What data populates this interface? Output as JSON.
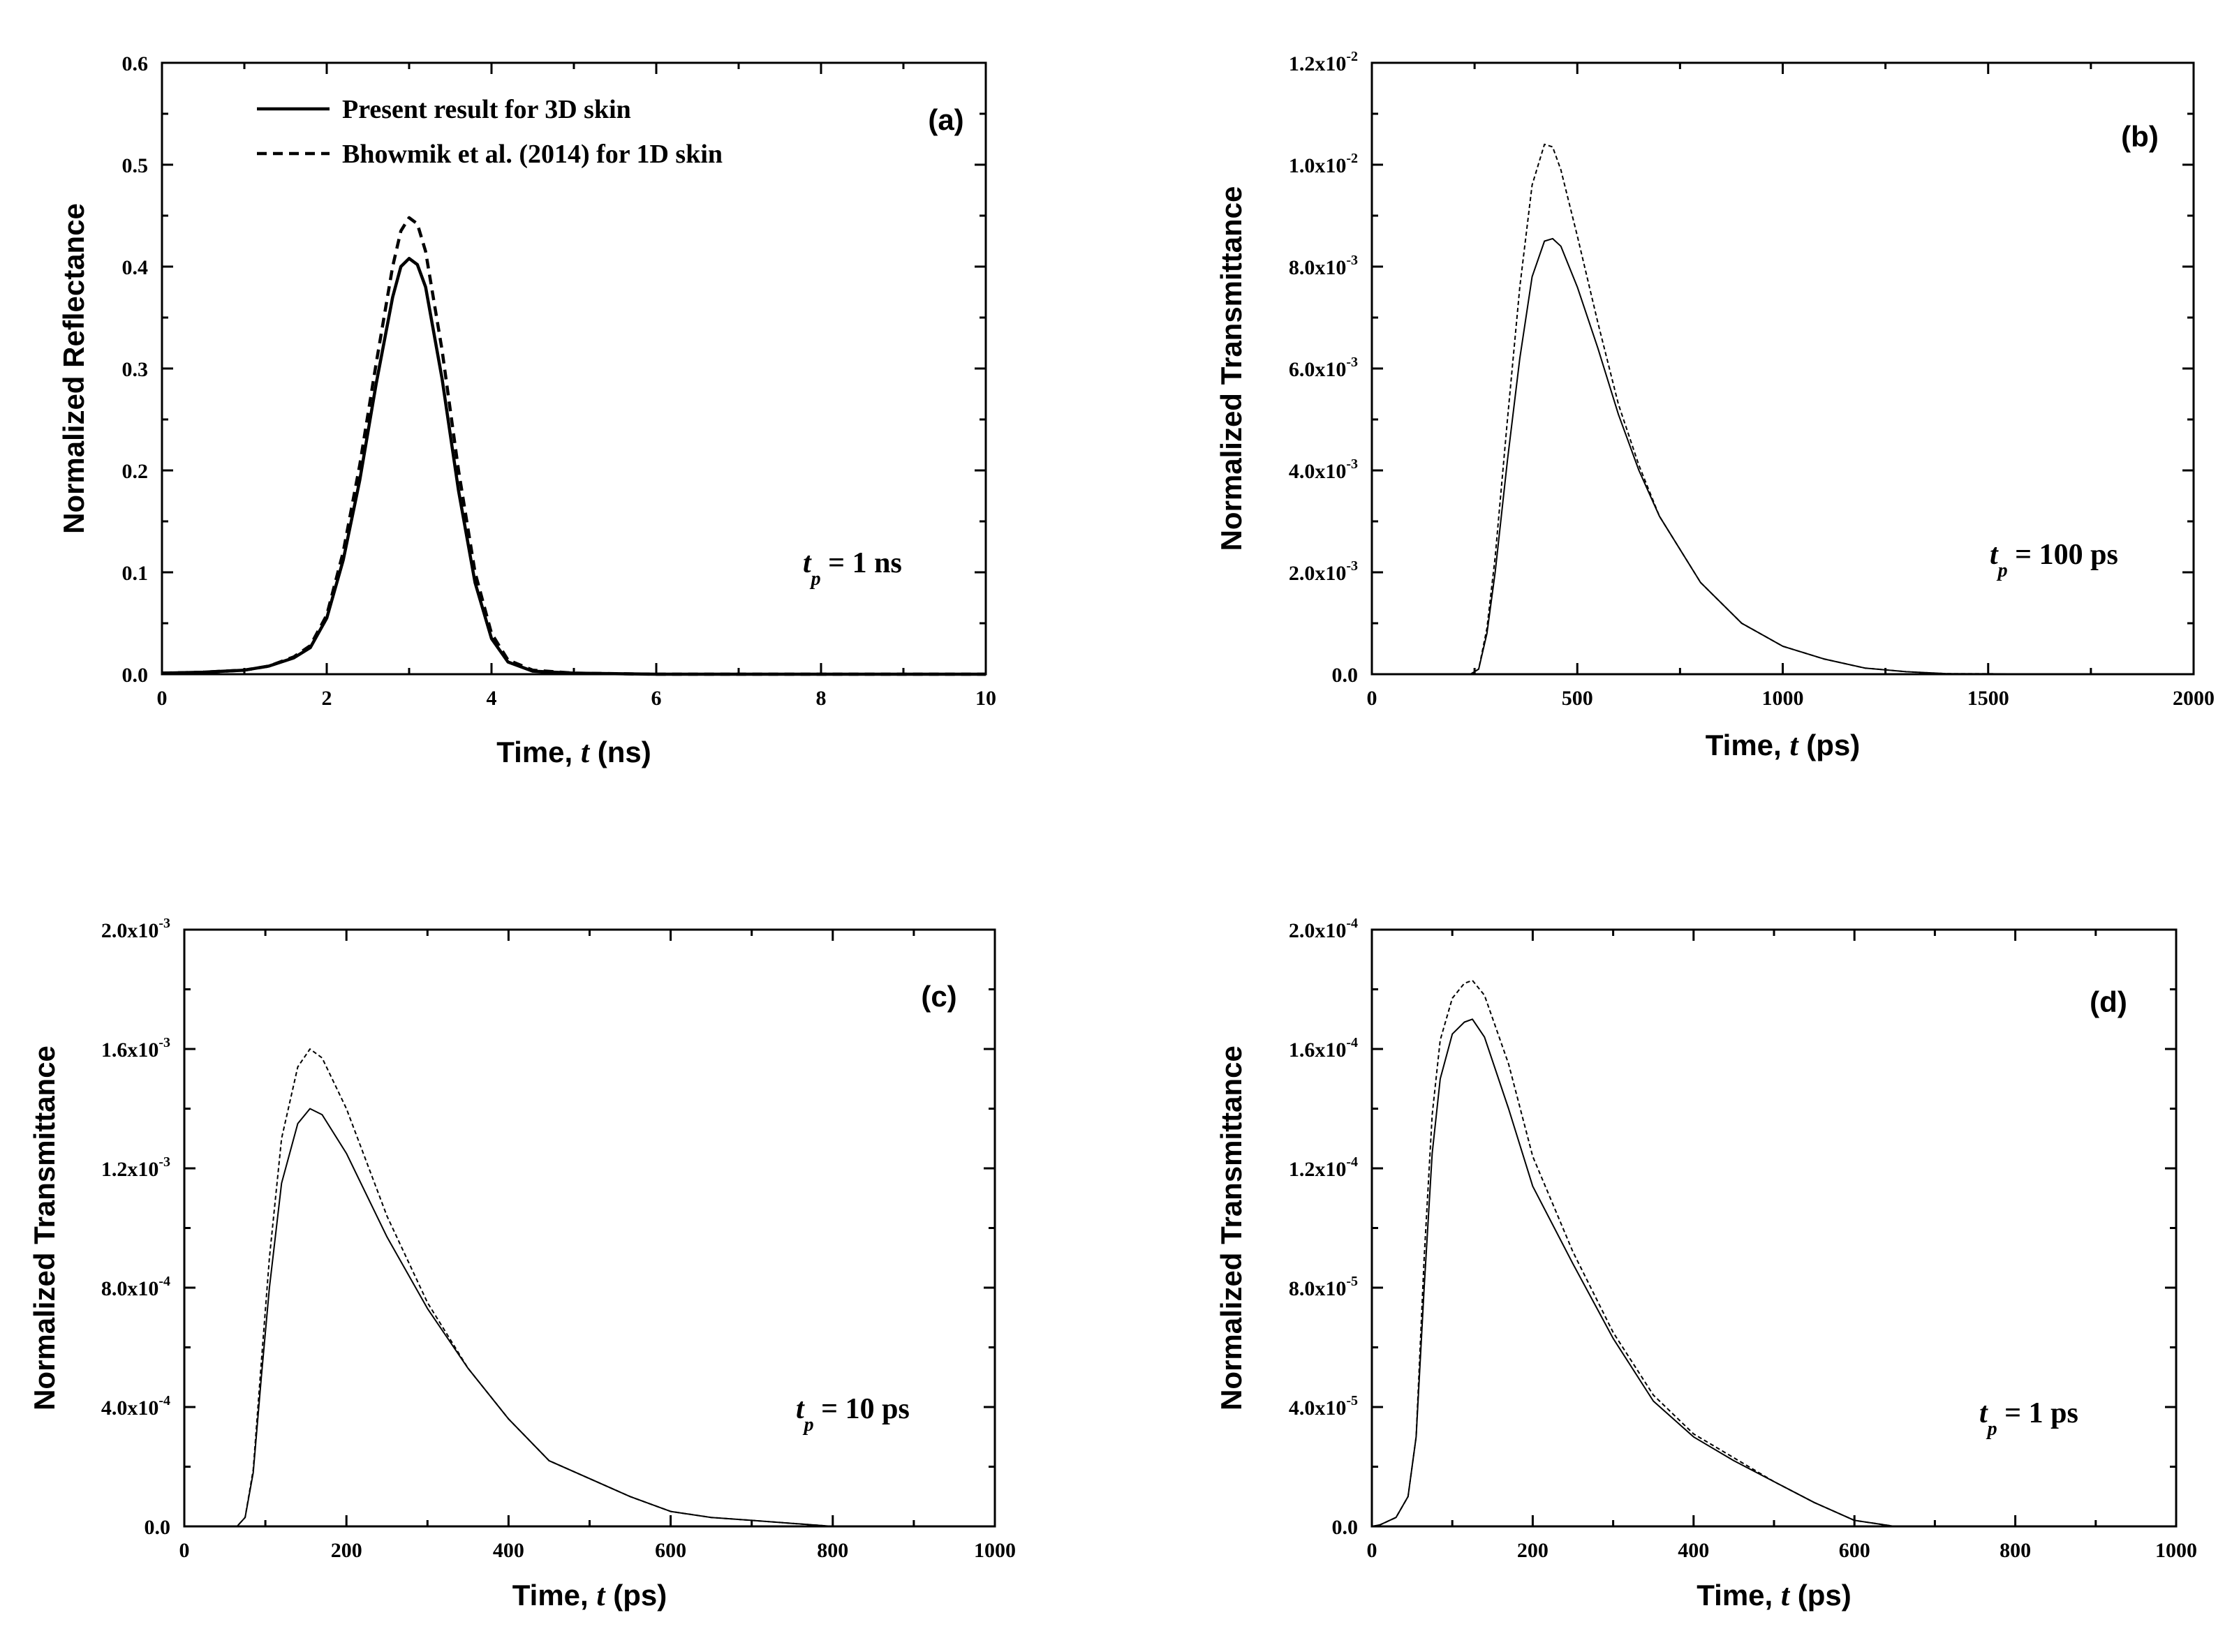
{
  "chart_data": [
    {
      "id": "a",
      "type": "line",
      "panel_label": "(a)",
      "xlabel": "Time, ",
      "xlabel_var": "t",
      "xlabel_unit": " (ns)",
      "ylabel": "Normalized Reflectance",
      "xlim": [
        0,
        10
      ],
      "ylim": [
        0,
        0.6
      ],
      "xticks": [
        0,
        2,
        4,
        6,
        8,
        10
      ],
      "yticks": [
        0.0,
        0.1,
        0.2,
        0.3,
        0.4,
        0.5,
        0.6
      ],
      "xtick_labels": [
        "0",
        "2",
        "4",
        "6",
        "8",
        "10"
      ],
      "ytick_labels": [
        "0.0",
        "0.1",
        "0.2",
        "0.3",
        "0.4",
        "0.5",
        "0.6"
      ],
      "annotation": {
        "var": "t",
        "sub": "p",
        "text": " = 1 ns"
      },
      "legend": [
        {
          "label": "Present result for 3D skin",
          "style": "solid"
        },
        {
          "label": "Bhowmik et al. (2014)  for 1D skin",
          "style": "dashed"
        }
      ],
      "series": [
        {
          "name": "Present result for 3D skin",
          "style": "solid",
          "x": [
            0,
            0.5,
            1.0,
            1.3,
            1.6,
            1.8,
            2.0,
            2.2,
            2.4,
            2.6,
            2.8,
            2.9,
            3.0,
            3.1,
            3.2,
            3.4,
            3.6,
            3.8,
            4.0,
            4.2,
            4.5,
            5.0,
            6.0,
            10
          ],
          "y": [
            0.001,
            0.002,
            0.004,
            0.008,
            0.016,
            0.026,
            0.055,
            0.112,
            0.19,
            0.285,
            0.37,
            0.4,
            0.408,
            0.402,
            0.38,
            0.29,
            0.18,
            0.09,
            0.035,
            0.012,
            0.003,
            0.001,
            0.0,
            0.0
          ]
        },
        {
          "name": "Bhowmik et al. (2014)  for 1D skin",
          "style": "dashed",
          "x": [
            0,
            0.5,
            1.0,
            1.3,
            1.6,
            1.8,
            2.0,
            2.2,
            2.4,
            2.6,
            2.8,
            2.9,
            3.0,
            3.1,
            3.2,
            3.4,
            3.6,
            3.8,
            4.0,
            4.2,
            4.5,
            5.0,
            6.0,
            10
          ],
          "y": [
            0.001,
            0.002,
            0.004,
            0.008,
            0.017,
            0.028,
            0.058,
            0.12,
            0.205,
            0.305,
            0.4,
            0.435,
            0.448,
            0.442,
            0.415,
            0.318,
            0.2,
            0.1,
            0.04,
            0.014,
            0.004,
            0.001,
            0.0,
            0.0
          ]
        }
      ]
    },
    {
      "id": "b",
      "type": "line",
      "panel_label": "(b)",
      "xlabel": "Time, ",
      "xlabel_var": "t",
      "xlabel_unit": " (ps)",
      "ylabel": "Normalized Transmittance",
      "xlim": [
        0,
        2000
      ],
      "ylim": [
        0,
        0.012
      ],
      "xticks": [
        0,
        500,
        1000,
        1500,
        2000
      ],
      "yticks": [
        0,
        0.002,
        0.004,
        0.006,
        0.008,
        0.01,
        0.012
      ],
      "xtick_labels": [
        "0",
        "500",
        "1000",
        "1500",
        "2000"
      ],
      "ytick_labels": [
        [
          "0.0",
          ""
        ],
        [
          "2.0x10",
          "-3"
        ],
        [
          "4.0x10",
          "-3"
        ],
        [
          "6.0x10",
          "-3"
        ],
        [
          "8.0x10",
          "-3"
        ],
        [
          "1.0x10",
          "-2"
        ],
        [
          "1.2x10",
          "-2"
        ]
      ],
      "annotation": {
        "var": "t",
        "sub": "p",
        "text": " = 100 ps"
      },
      "series": [
        {
          "name": "Present result for 3D skin",
          "style": "solid",
          "x": [
            0,
            240,
            260,
            280,
            300,
            330,
            360,
            390,
            420,
            440,
            460,
            500,
            550,
            600,
            650,
            700,
            800,
            900,
            1000,
            1100,
            1200,
            1300,
            1400,
            2000
          ],
          "y": [
            0,
            0,
            0.0001,
            0.0008,
            0.002,
            0.0042,
            0.0062,
            0.0078,
            0.0085,
            0.00855,
            0.0084,
            0.0076,
            0.0064,
            0.0051,
            0.004,
            0.0031,
            0.0018,
            0.001,
            0.00055,
            0.0003,
            0.00012,
            5e-05,
            1e-05,
            0
          ]
        },
        {
          "name": "Bhowmik et al. (2014)  for 1D skin",
          "style": "dashed",
          "x": [
            0,
            240,
            260,
            280,
            300,
            330,
            360,
            390,
            420,
            440,
            460,
            500,
            550,
            600,
            650,
            700,
            800,
            900,
            1000,
            1100,
            1200,
            1300,
            1400,
            2000
          ],
          "y": [
            0,
            0,
            0.0001,
            0.0009,
            0.0023,
            0.005,
            0.0076,
            0.0096,
            0.0104,
            0.01035,
            0.0099,
            0.0086,
            0.0069,
            0.0053,
            0.0041,
            0.0031,
            0.0018,
            0.001,
            0.00055,
            0.0003,
            0.00012,
            5e-05,
            1e-05,
            0
          ]
        }
      ]
    },
    {
      "id": "c",
      "type": "line",
      "panel_label": "(c)",
      "xlabel": "Time, ",
      "xlabel_var": "t",
      "xlabel_unit": " (ps)",
      "ylabel": "Normalized Transmittance",
      "xlim": [
        0,
        1000
      ],
      "ylim": [
        0,
        0.002
      ],
      "xticks": [
        0,
        200,
        400,
        600,
        800,
        1000
      ],
      "yticks": [
        0,
        0.0004,
        0.0008,
        0.0012,
        0.0016,
        0.002
      ],
      "xtick_labels": [
        "0",
        "200",
        "400",
        "600",
        "800",
        "1000"
      ],
      "ytick_labels": [
        [
          "0.0",
          ""
        ],
        [
          "4.0x10",
          "-4"
        ],
        [
          "8.0x10",
          "-4"
        ],
        [
          "1.2x10",
          "-3"
        ],
        [
          "1.6x10",
          "-3"
        ],
        [
          "2.0x10",
          "-3"
        ]
      ],
      "annotation": {
        "var": "t",
        "sub": "p",
        "text": " = 10 ps"
      },
      "series": [
        {
          "name": "Present result for 3D skin",
          "style": "solid",
          "x": [
            0,
            65,
            75,
            85,
            95,
            105,
            120,
            140,
            155,
            170,
            200,
            250,
            300,
            350,
            400,
            450,
            500,
            550,
            600,
            650,
            700,
            750,
            800,
            1000
          ],
          "y": [
            0,
            0,
            3e-05,
            0.00018,
            0.0005,
            0.0008,
            0.00115,
            0.00135,
            0.0014,
            0.00138,
            0.00125,
            0.00097,
            0.00073,
            0.00053,
            0.00036,
            0.00022,
            0.00016,
            0.0001,
            5e-05,
            3e-05,
            2e-05,
            1e-05,
            0,
            0
          ]
        },
        {
          "name": "Bhowmik et al. (2014)  for 1D skin",
          "style": "dashed",
          "x": [
            0,
            65,
            75,
            85,
            95,
            105,
            120,
            140,
            155,
            170,
            200,
            250,
            300,
            350,
            400,
            450,
            500,
            550,
            600,
            650,
            700,
            750,
            800,
            1000
          ],
          "y": [
            0,
            0,
            3e-05,
            0.00019,
            0.00055,
            0.0009,
            0.0013,
            0.00154,
            0.0016,
            0.00157,
            0.0014,
            0.00104,
            0.00075,
            0.00053,
            0.00036,
            0.00022,
            0.00016,
            0.0001,
            5e-05,
            3e-05,
            2e-05,
            1e-05,
            0,
            0
          ]
        }
      ]
    },
    {
      "id": "d",
      "type": "line",
      "panel_label": "(d)",
      "xlabel": "Time, ",
      "xlabel_var": "t",
      "xlabel_unit": " (ps)",
      "ylabel": "Normalized Transmittance",
      "xlim": [
        0,
        1000
      ],
      "ylim": [
        0,
        0.0002
      ],
      "xticks": [
        0,
        200,
        400,
        600,
        800,
        1000
      ],
      "yticks": [
        0,
        4e-05,
        8e-05,
        0.00012,
        0.00016,
        0.0002
      ],
      "xtick_labels": [
        "0",
        "200",
        "400",
        "600",
        "800",
        "1000"
      ],
      "ytick_labels": [
        [
          "0.0",
          ""
        ],
        [
          "4.0x10",
          "-5"
        ],
        [
          "8.0x10",
          "-5"
        ],
        [
          "1.2x10",
          "-4"
        ],
        [
          "1.6x10",
          "-4"
        ],
        [
          "2.0x10",
          "-4"
        ]
      ],
      "annotation": {
        "var": "t",
        "sub": "p",
        "text": " = 1 ps"
      },
      "series": [
        {
          "name": "Present result for 3D skin",
          "style": "solid",
          "x": [
            0,
            10,
            30,
            45,
            55,
            65,
            75,
            85,
            100,
            115,
            125,
            140,
            170,
            200,
            250,
            300,
            350,
            400,
            450,
            500,
            550,
            600,
            650,
            1000
          ],
          "y": [
            0,
            5e-07,
            3e-06,
            1e-05,
            3e-05,
            8e-05,
            0.000125,
            0.00015,
            0.000165,
            0.000169,
            0.00017,
            0.000164,
            0.00014,
            0.000114,
            8.8e-05,
            6.3e-05,
            4.2e-05,
            3e-05,
            2.2e-05,
            1.5e-05,
            8e-06,
            2e-06,
            0,
            0
          ]
        },
        {
          "name": "Bhowmik et al. (2014)  for 1D skin",
          "style": "dashed",
          "x": [
            0,
            10,
            30,
            45,
            55,
            65,
            75,
            85,
            100,
            115,
            125,
            140,
            170,
            200,
            250,
            300,
            350,
            400,
            450,
            500,
            550,
            600,
            650,
            1000
          ],
          "y": [
            0,
            5e-07,
            3e-06,
            1e-05,
            3e-05,
            9e-05,
            0.000138,
            0.000163,
            0.000177,
            0.000182,
            0.000183,
            0.000178,
            0.000155,
            0.000124,
            9.2e-05,
            6.5e-05,
            4.4e-05,
            3.1e-05,
            2.3e-05,
            1.5e-05,
            8e-06,
            2e-06,
            0,
            0
          ]
        }
      ]
    }
  ]
}
